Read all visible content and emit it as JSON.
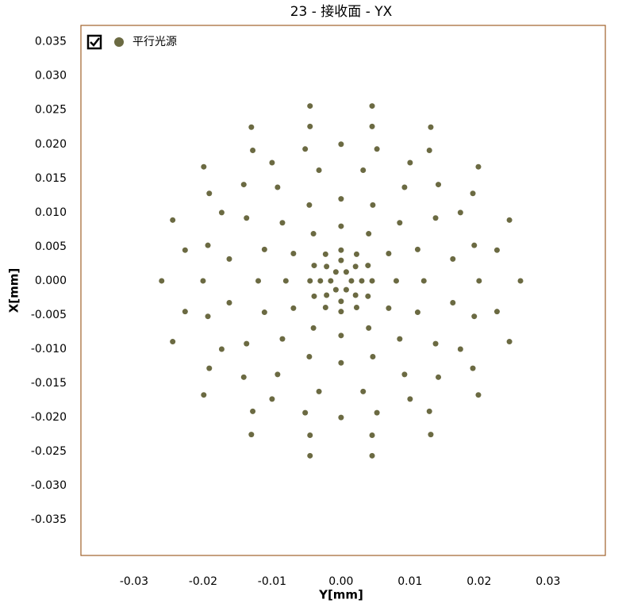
{
  "chart_data": {
    "type": "scatter",
    "title": "23 - 接收面 - YX",
    "x_label": "Y[mm]",
    "y_label": "X[mm]",
    "xlim": [
      -0.0377,
      0.0383
    ],
    "ylim": [
      -0.0402,
      0.0374
    ],
    "xticks": [
      -0.03,
      -0.02,
      -0.01,
      {
        "value": 0,
        "label": "0.00"
      },
      0.01,
      0.02,
      0.03
    ],
    "yticks": [
      0.035,
      {
        "value": 0.03,
        "label": "0.030"
      },
      0.025,
      {
        "value": 0.02,
        "label": "0.020"
      },
      0.015,
      {
        "value": 0.01,
        "label": "0.010"
      },
      0.005,
      {
        "value": 0,
        "label": "0.000"
      },
      -0.005,
      {
        "value": -0.01,
        "label": "-0.010"
      },
      -0.015,
      {
        "value": -0.02,
        "label": "-0.020"
      },
      -0.025,
      {
        "value": -0.03,
        "label": "-0.030"
      },
      -0.035
    ],
    "legend": "top-left",
    "series": [
      {
        "name": "平行光源",
        "color": "#6b6a42",
        "x": [
          0.0015,
          0.00075,
          -0.00075,
          -0.0015,
          -0.00075,
          0.00075,
          0.003,
          0.0021,
          0,
          -0.0021,
          -0.003,
          -0.0021,
          0,
          0.0021,
          0.0045,
          0.0039,
          0.00225,
          0,
          -0.00225,
          -0.0039,
          -0.0045,
          -0.0039,
          -0.00225,
          0,
          0.00225,
          0.0039,
          0.008,
          0.0069,
          0.004,
          0,
          -0.004,
          -0.0069,
          -0.008,
          -0.0069,
          -0.004,
          0,
          0.004,
          0.0069,
          0.012,
          0.0111,
          0.0085,
          0.0046,
          0,
          -0.0046,
          -0.0085,
          -0.0111,
          -0.012,
          -0.0111,
          -0.0085,
          -0.0046,
          0,
          0.0046,
          0.0085,
          0.0111,
          0.0162,
          0.0137,
          0.0092,
          0.0032,
          -0.0032,
          -0.0092,
          -0.0137,
          -0.0162,
          -0.0162,
          -0.0137,
          -0.0092,
          -0.0032,
          0.0032,
          0.0092,
          0.0137,
          0.0162,
          0.02,
          0.0193,
          0.0173,
          0.0141,
          0.01,
          0.0052,
          0,
          -0.0052,
          -0.01,
          -0.0141,
          -0.0173,
          -0.0193,
          -0.02,
          -0.0193,
          -0.0173,
          -0.0141,
          -0.01,
          -0.0052,
          0,
          0.0052,
          0.01,
          0.0141,
          0.0173,
          0.0193,
          0.0226,
          0.0191,
          0.0128,
          0.0045,
          -0.0045,
          -0.0128,
          -0.0191,
          -0.0226,
          -0.0226,
          -0.0191,
          -0.0128,
          -0.0045,
          0.0045,
          0.0128,
          0.0191,
          0.0226,
          0.026,
          0.0244,
          0.0199,
          0.013,
          0.0045,
          -0.0045,
          -0.013,
          -0.0199,
          -0.0244,
          -0.026,
          -0.0244,
          -0.0199,
          -0.013,
          -0.0045,
          0.0045,
          0.013,
          0.0199,
          0.0244
        ],
        "values": [
          0,
          0.0013,
          0.0013,
          0,
          -0.0013,
          -0.0013,
          0,
          0.0021,
          0.003,
          0.0021,
          0,
          -0.0021,
          -0.003,
          -0.0021,
          0,
          0.00225,
          0.0039,
          0.0045,
          0.0039,
          0.00225,
          0,
          -0.00225,
          -0.0039,
          -0.0045,
          -0.0039,
          -0.00225,
          0,
          0.004,
          0.0069,
          0.008,
          0.0069,
          0.004,
          0,
          -0.004,
          -0.0069,
          -0.008,
          -0.0069,
          -0.004,
          0,
          0.0046,
          0.0085,
          0.0111,
          0.012,
          0.0111,
          0.0085,
          0.0046,
          0,
          -0.0046,
          -0.0085,
          -0.0111,
          -0.012,
          -0.0111,
          -0.0085,
          -0.0046,
          0.0032,
          0.0092,
          0.0137,
          0.0162,
          0.0162,
          0.0137,
          0.0092,
          0.0032,
          -0.0032,
          -0.0092,
          -0.0137,
          -0.0162,
          -0.0162,
          -0.0137,
          -0.0092,
          -0.0032,
          0,
          0.0052,
          0.01,
          0.0141,
          0.0173,
          0.0193,
          0.02,
          0.0193,
          0.0173,
          0.0141,
          0.01,
          0.0052,
          0,
          -0.0052,
          -0.01,
          -0.0141,
          -0.0173,
          -0.0193,
          -0.02,
          -0.0193,
          -0.0173,
          -0.0141,
          -0.01,
          -0.0052,
          0.0045,
          0.0128,
          0.0191,
          0.0226,
          0.0226,
          0.0191,
          0.0128,
          0.0045,
          -0.0045,
          -0.0128,
          -0.0191,
          -0.0226,
          -0.0226,
          -0.0191,
          -0.0128,
          -0.0045,
          0,
          0.0089,
          0.0167,
          0.0225,
          0.0256,
          0.0256,
          0.0225,
          0.0167,
          0.0089,
          0,
          -0.0089,
          -0.0167,
          -0.0225,
          -0.0256,
          -0.0256,
          -0.0225,
          -0.0167,
          -0.0089
        ]
      }
    ]
  }
}
